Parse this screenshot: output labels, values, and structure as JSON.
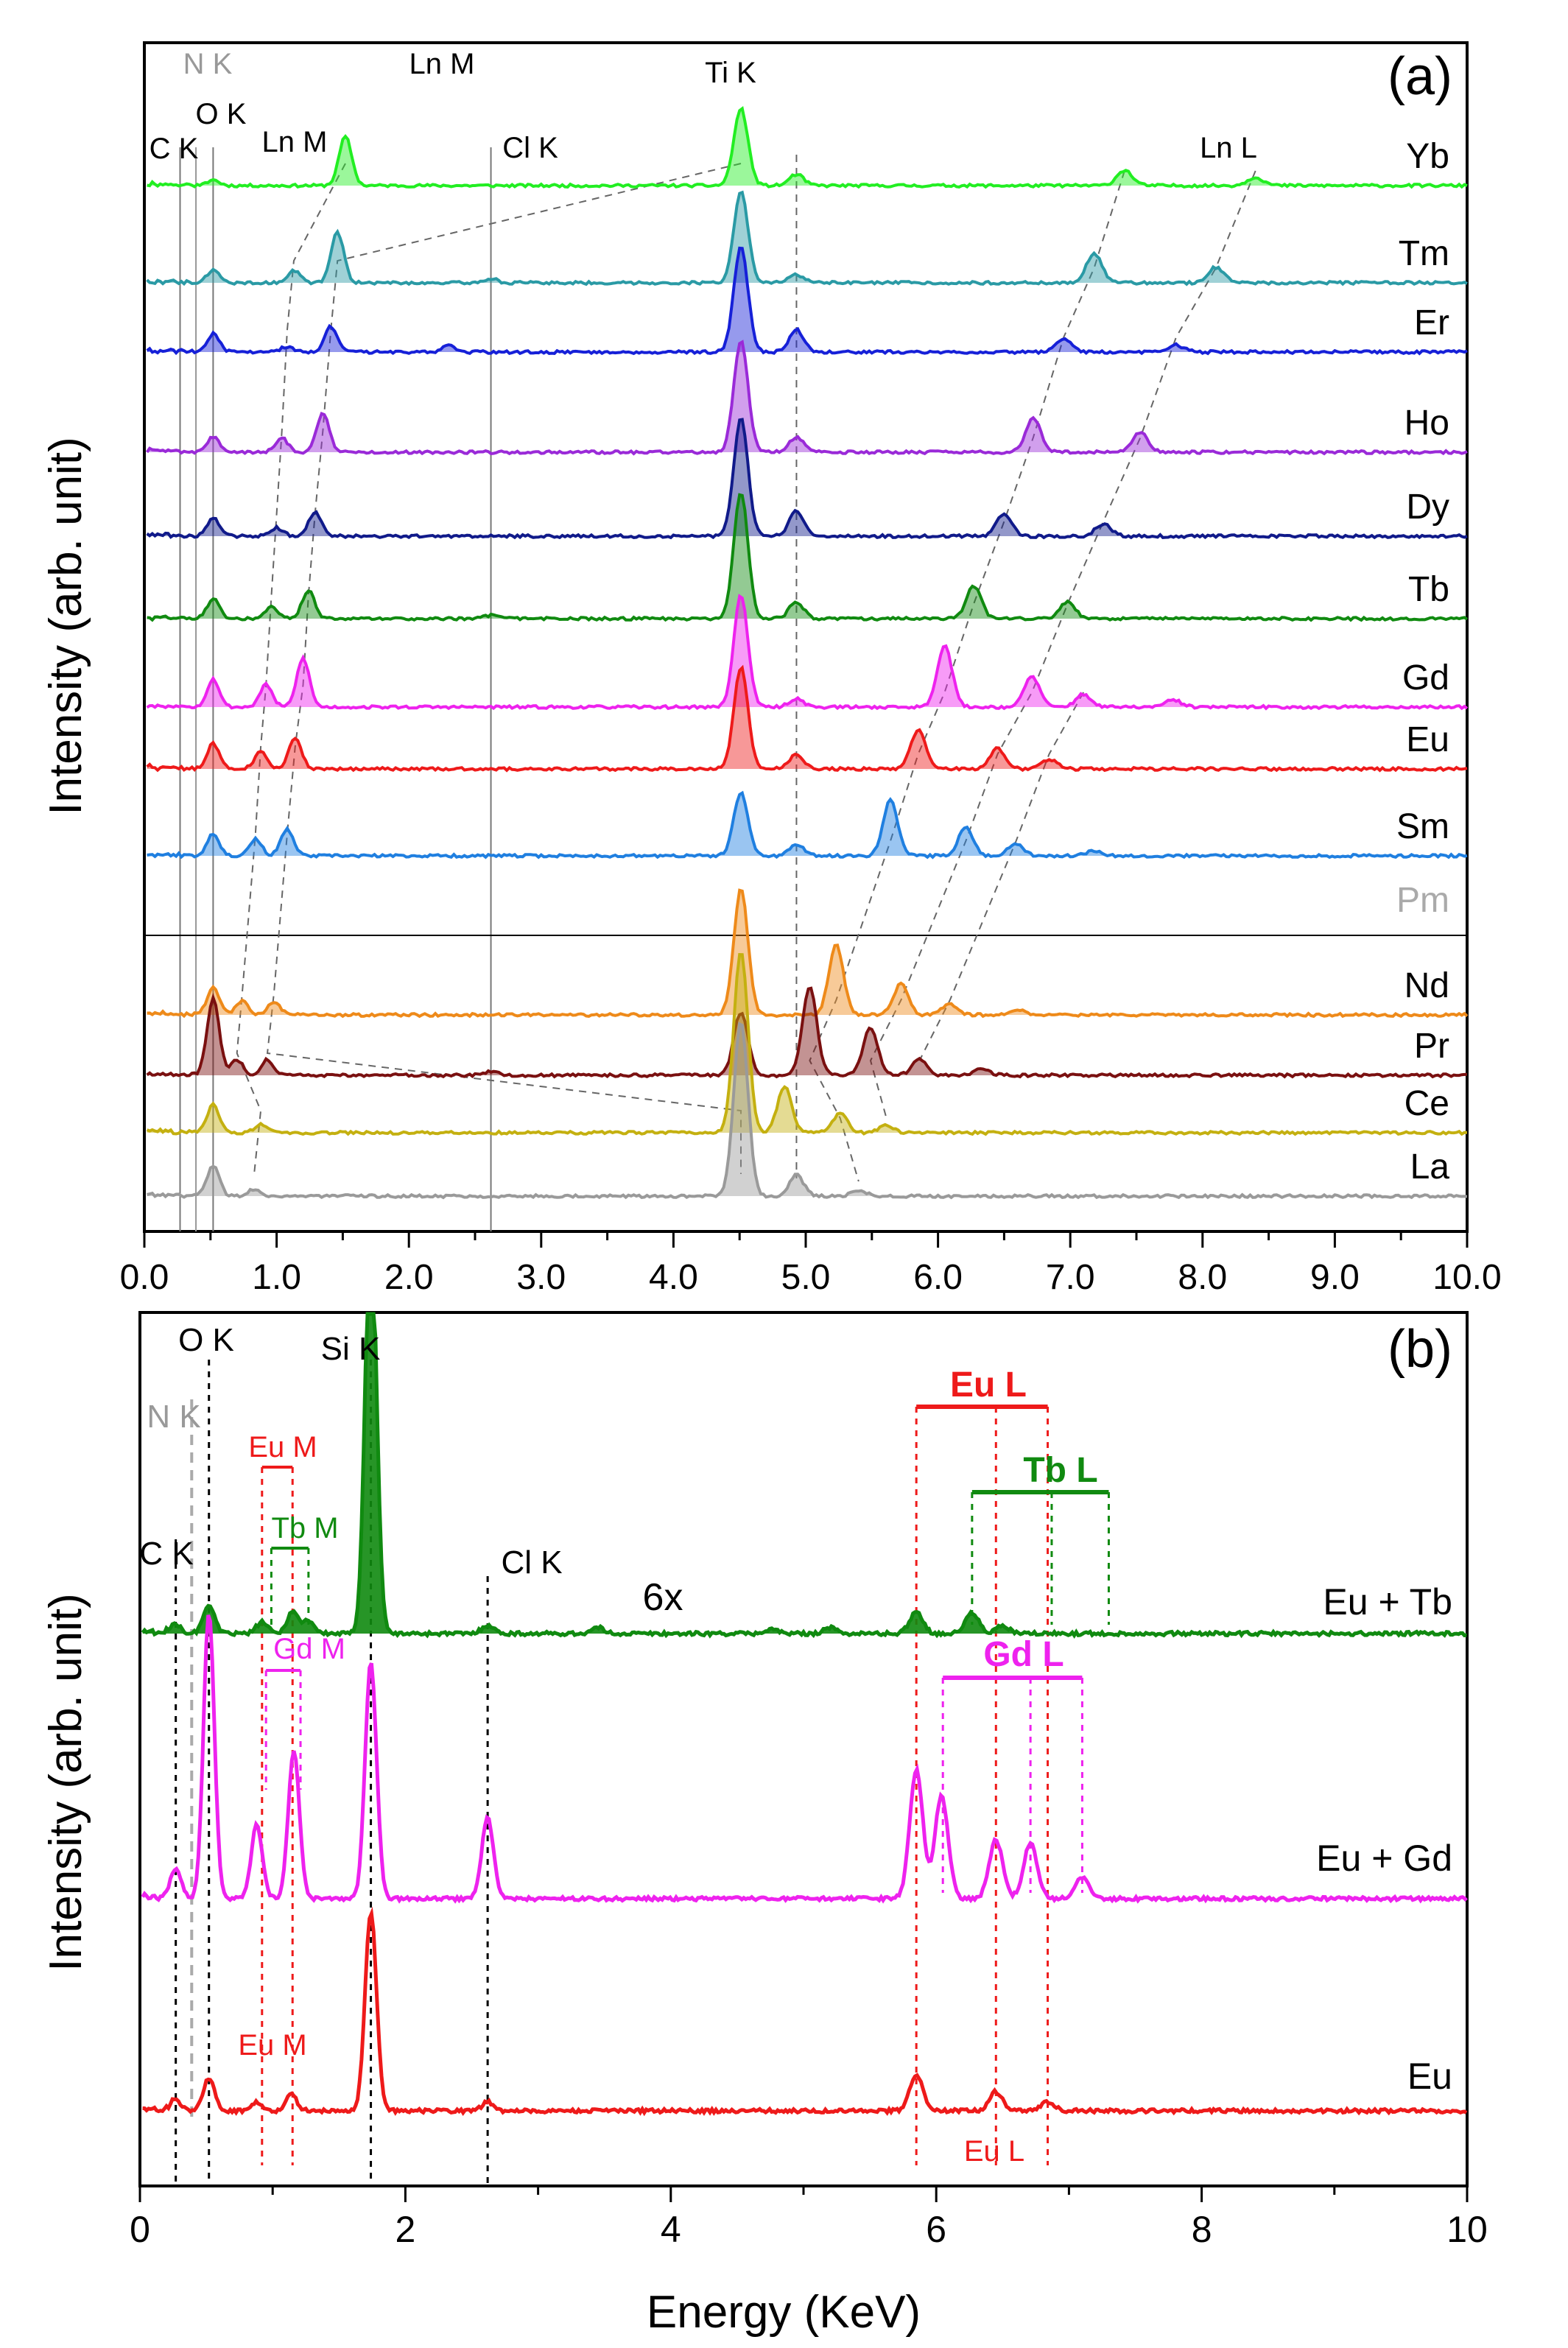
{
  "figure": {
    "y_label": "Intensity (arb. unit)",
    "x_label": "Energy (KeV)"
  },
  "chart_data": [
    {
      "panel": "(a)",
      "type": "line",
      "xlim": [
        0.0,
        10.0
      ],
      "xticks": [
        "0.0",
        "0.5",
        "1.0",
        "1.5",
        "2.0",
        "2.5",
        "3.0",
        "3.5",
        "4.0",
        "4.5",
        "5.0",
        "5.5",
        "6.0",
        "6.5",
        "7.0",
        "7.5",
        "8.0",
        "8.5",
        "9.0",
        "9.5",
        "10.0"
      ],
      "xtick_labels_shown": [
        "0.0",
        "1.0",
        "2.0",
        "3.0",
        "4.0",
        "5.0",
        "6.0",
        "7.0",
        "8.0",
        "9.0",
        "10.0"
      ],
      "peak_labels": [
        {
          "text": "C K",
          "x": 0.27
        },
        {
          "text": "N K",
          "x": 0.39,
          "color": "#999999"
        },
        {
          "text": "O K",
          "x": 0.52
        },
        {
          "text": "Ln M",
          "x": 1.15
        },
        {
          "text": "Ln M",
          "x": 1.55
        },
        {
          "text": "Cl K",
          "x": 2.62
        },
        {
          "text": "Ti K",
          "x": 4.51
        },
        {
          "text": "Ln L",
          "x": 8.1
        }
      ],
      "reference_lines": [
        0.27,
        0.39,
        0.52,
        2.62
      ],
      "ti_kbeta_line": 4.93,
      "divider_after": "Pm",
      "series": [
        {
          "name": "Yb",
          "color": "#22ee22",
          "peaks": [
            [
              0.52,
              8
            ],
            [
              1.52,
              70
            ],
            [
              4.51,
              110
            ],
            [
              4.93,
              16
            ],
            [
              7.41,
              22
            ],
            [
              8.4,
              12
            ]
          ]
        },
        {
          "name": "Tm",
          "color": "#2a9aa5",
          "peaks": [
            [
              0.52,
              18
            ],
            [
              1.13,
              18
            ],
            [
              1.46,
              72
            ],
            [
              2.62,
              6
            ],
            [
              4.51,
              130
            ],
            [
              4.93,
              12
            ],
            [
              7.18,
              42
            ],
            [
              8.1,
              22
            ]
          ]
        },
        {
          "name": "Er",
          "color": "#1620d8",
          "peaks": [
            [
              0.52,
              26
            ],
            [
              1.08,
              8
            ],
            [
              1.41,
              36
            ],
            [
              2.3,
              10
            ],
            [
              4.51,
              150
            ],
            [
              4.93,
              32
            ],
            [
              6.95,
              18
            ],
            [
              7.8,
              10
            ]
          ]
        },
        {
          "name": "Ho",
          "color": "#9a2ad8",
          "peaks": [
            [
              0.52,
              22
            ],
            [
              1.04,
              20
            ],
            [
              1.35,
              56
            ],
            [
              4.51,
              160
            ],
            [
              4.93,
              22
            ],
            [
              6.72,
              48
            ],
            [
              7.53,
              28
            ]
          ]
        },
        {
          "name": "Dy",
          "color": "#101a8a",
          "peaks": [
            [
              0.52,
              26
            ],
            [
              1.0,
              12
            ],
            [
              1.29,
              34
            ],
            [
              4.51,
              170
            ],
            [
              4.93,
              36
            ],
            [
              6.5,
              32
            ],
            [
              7.25,
              18
            ]
          ]
        },
        {
          "name": "Tb",
          "color": "#108a10",
          "peaks": [
            [
              0.52,
              28
            ],
            [
              0.96,
              16
            ],
            [
              1.24,
              40
            ],
            [
              2.62,
              5
            ],
            [
              4.51,
              180
            ],
            [
              4.93,
              24
            ],
            [
              6.27,
              46
            ],
            [
              6.98,
              24
            ]
          ]
        },
        {
          "name": "Gd",
          "color": "#ee22ee",
          "peaks": [
            [
              0.52,
              40
            ],
            [
              0.92,
              32
            ],
            [
              1.2,
              70
            ],
            [
              4.51,
              160
            ],
            [
              4.93,
              12
            ],
            [
              6.05,
              88
            ],
            [
              6.71,
              44
            ],
            [
              7.1,
              18
            ],
            [
              7.78,
              10
            ]
          ]
        },
        {
          "name": "Eu",
          "color": "#ee1a1a",
          "peaks": [
            [
              0.52,
              36
            ],
            [
              0.88,
              24
            ],
            [
              1.14,
              44
            ],
            [
              4.51,
              145
            ],
            [
              4.93,
              20
            ],
            [
              5.85,
              56
            ],
            [
              6.45,
              30
            ],
            [
              6.84,
              14
            ]
          ]
        },
        {
          "name": "Sm",
          "color": "#1f7fe0",
          "peaks": [
            [
              0.52,
              32
            ],
            [
              0.84,
              24
            ],
            [
              1.08,
              38
            ],
            [
              4.51,
              90
            ],
            [
              4.93,
              16
            ],
            [
              5.64,
              80
            ],
            [
              6.21,
              40
            ],
            [
              6.59,
              18
            ],
            [
              7.18,
              8
            ]
          ]
        },
        {
          "name": "Pm",
          "color": "#aaaaaa",
          "peaks": []
        },
        {
          "name": "Nd",
          "color": "#ee8a1a",
          "peaks": [
            [
              0.52,
              40
            ],
            [
              0.74,
              20
            ],
            [
              0.98,
              18
            ],
            [
              4.51,
              180
            ],
            [
              5.23,
              100
            ],
            [
              5.72,
              44
            ],
            [
              6.09,
              16
            ],
            [
              6.6,
              8
            ]
          ]
        },
        {
          "name": "Pr",
          "color": "#7a1010",
          "peaks": [
            [
              0.52,
              110
            ],
            [
              0.7,
              22
            ],
            [
              0.93,
              22
            ],
            [
              2.62,
              5
            ],
            [
              4.51,
              90
            ],
            [
              5.03,
              125
            ],
            [
              5.49,
              68
            ],
            [
              5.86,
              24
            ],
            [
              6.33,
              10
            ]
          ]
        },
        {
          "name": "Ce",
          "color": "#c4b010",
          "peaks": [
            [
              0.52,
              40
            ],
            [
              0.88,
              12
            ],
            [
              4.51,
              260
            ],
            [
              4.84,
              66
            ],
            [
              5.26,
              28
            ],
            [
              5.61,
              10
            ]
          ]
        },
        {
          "name": "La",
          "color": "#9a9a9a",
          "peaks": [
            [
              0.52,
              44
            ],
            [
              0.83,
              10
            ],
            [
              4.51,
              250
            ],
            [
              4.93,
              30
            ],
            [
              5.4,
              8
            ]
          ]
        }
      ]
    },
    {
      "panel": "(b)",
      "type": "line",
      "xlim": [
        0,
        10
      ],
      "xticks": [
        "0",
        "1",
        "2",
        "3",
        "4",
        "5",
        "6",
        "7",
        "8",
        "9",
        "10"
      ],
      "xtick_labels_shown": [
        "0",
        "2",
        "4",
        "6",
        "8",
        "10"
      ],
      "peak_labels": [
        {
          "text": "O K",
          "x": 0.52,
          "color": "#000000"
        },
        {
          "text": "N K",
          "x": 0.39,
          "color": "#999999"
        },
        {
          "text": "C K",
          "x": 0.27,
          "color": "#000000"
        },
        {
          "text": "Si K",
          "x": 1.74,
          "color": "#000000"
        },
        {
          "text": "Cl K",
          "x": 2.62,
          "color": "#000000"
        }
      ],
      "annotation_6x": "6x",
      "line_groups": [
        {
          "label": "Eu M",
          "color": "#ee1a1a",
          "x": [
            0.92,
            1.15
          ]
        },
        {
          "label": "Tb M",
          "color": "#108a10",
          "x": [
            0.99,
            1.27
          ]
        },
        {
          "label": "Gd M",
          "color": "#ee22ee",
          "x": [
            0.95,
            1.21
          ]
        },
        {
          "label": "Eu L",
          "color": "#ee1a1a",
          "x": [
            5.85,
            6.45,
            6.84
          ]
        },
        {
          "label": "Tb L",
          "color": "#108a10",
          "x": [
            6.27,
            6.87,
            7.3
          ]
        },
        {
          "label": "Gd L",
          "color": "#ee22ee",
          "x": [
            6.05,
            6.71,
            7.1
          ]
        }
      ],
      "series": [
        {
          "name": "Eu + Tb",
          "color": "#108a10",
          "peaks": [
            [
              0.27,
              12
            ],
            [
              0.52,
              40
            ],
            [
              0.92,
              16
            ],
            [
              1.15,
              30
            ],
            [
              1.27,
              18
            ],
            [
              1.74,
              560
            ],
            [
              2.62,
              12
            ],
            [
              3.45,
              8
            ],
            [
              4.76,
              6
            ],
            [
              5.2,
              8
            ],
            [
              5.85,
              30
            ],
            [
              6.27,
              28
            ],
            [
              6.5,
              10
            ]
          ]
        },
        {
          "name": "Eu + Gd",
          "color": "#ee22ee",
          "peaks": [
            [
              0.27,
              40
            ],
            [
              0.52,
              390
            ],
            [
              0.88,
              100
            ],
            [
              1.16,
              200
            ],
            [
              1.74,
              320
            ],
            [
              2.62,
              110
            ],
            [
              5.85,
              175
            ],
            [
              6.04,
              140
            ],
            [
              6.45,
              80
            ],
            [
              6.71,
              75
            ],
            [
              7.1,
              30
            ]
          ]
        },
        {
          "name": "Eu",
          "color": "#ee1a1a",
          "peaks": [
            [
              0.27,
              14
            ],
            [
              0.52,
              45
            ],
            [
              0.88,
              12
            ],
            [
              1.14,
              22
            ],
            [
              1.74,
              270
            ],
            [
              2.62,
              12
            ],
            [
              5.85,
              50
            ],
            [
              6.45,
              26
            ],
            [
              6.84,
              12
            ]
          ]
        }
      ],
      "secondary_labels": [
        {
          "text": "Eu M",
          "color": "#ee1a1a",
          "x": 1.05
        },
        {
          "text": "Eu L",
          "color": "#ee1a1a",
          "x": 6.45
        }
      ]
    }
  ]
}
